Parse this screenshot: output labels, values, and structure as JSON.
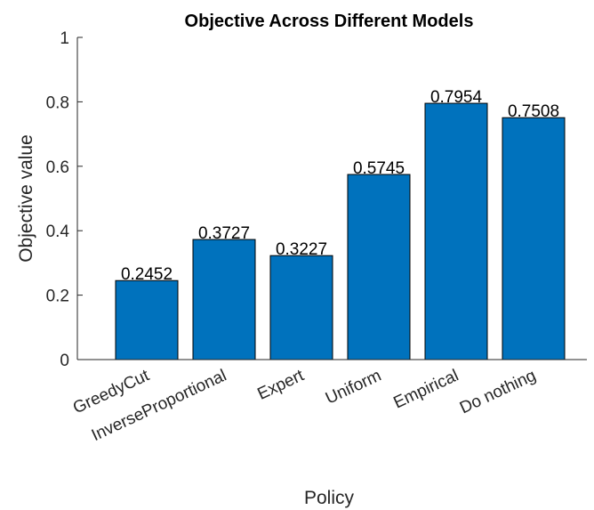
{
  "chart_data": {
    "type": "bar",
    "title": "Objective Across Different Models",
    "x_label": "Policy",
    "y_label": "Objective value",
    "categories": [
      "GreedyCut",
      "InverseProportional",
      "Expert",
      "Uniform",
      "Empirical",
      "Do nothing"
    ],
    "values": [
      0.2452,
      0.3727,
      0.3227,
      0.5745,
      0.7954,
      0.7508
    ],
    "color": "#0072bd",
    "ylim": [
      0,
      1
    ],
    "yticks": [
      0,
      0.2,
      0.4,
      0.6,
      0.8,
      1
    ],
    "grid": false
  }
}
